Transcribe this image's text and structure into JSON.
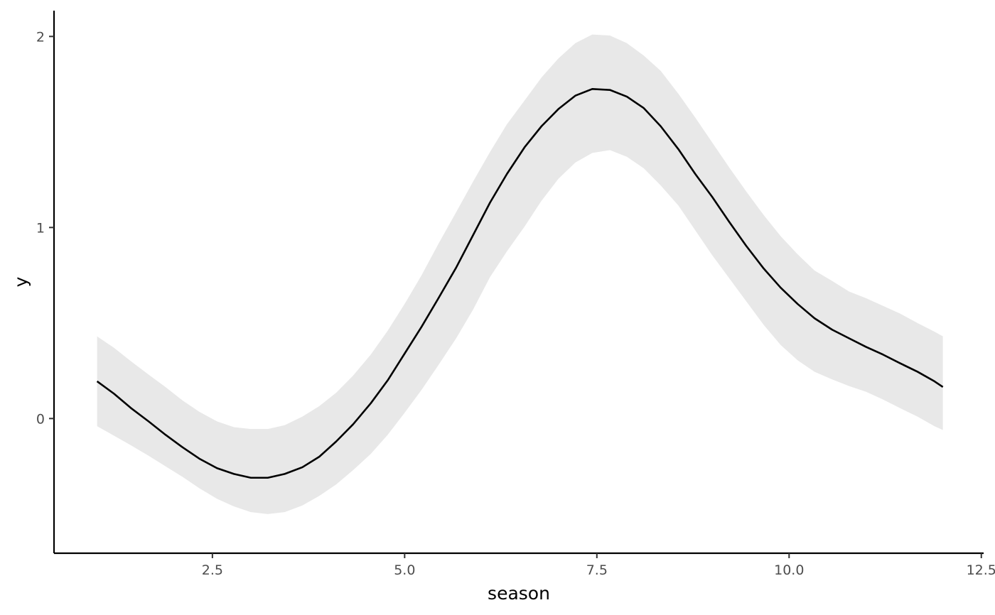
{
  "chart_data": {
    "type": "line",
    "title": "",
    "xlabel": "season",
    "ylabel": "y",
    "xlim": [
      0.44,
      12.53
    ],
    "ylim": [
      -0.705,
      2.135
    ],
    "grid": false,
    "legend": "none",
    "x_ticks": [
      {
        "value": 2.5,
        "label": "2.5"
      },
      {
        "value": 5.0,
        "label": "5.0"
      },
      {
        "value": 7.5,
        "label": "7.5"
      },
      {
        "value": 10.0,
        "label": "10.0"
      },
      {
        "value": 12.5,
        "label": "12.5"
      }
    ],
    "y_ticks": [
      {
        "value": 0,
        "label": "0"
      },
      {
        "value": 1,
        "label": "1"
      },
      {
        "value": 2,
        "label": "2"
      }
    ],
    "series": [
      {
        "x": [
          1.0,
          1.22,
          1.44,
          1.67,
          1.89,
          2.11,
          2.33,
          2.56,
          2.78,
          3.0,
          3.22,
          3.44,
          3.67,
          3.89,
          4.11,
          4.33,
          4.56,
          4.78,
          5.0,
          5.22,
          5.44,
          5.67,
          5.89,
          6.11,
          6.33,
          6.56,
          6.78,
          7.0,
          7.22,
          7.44,
          7.67,
          7.89,
          8.11,
          8.33,
          8.56,
          8.78,
          9.0,
          9.22,
          9.44,
          9.67,
          9.89,
          10.11,
          10.33,
          10.56,
          10.78,
          11.0,
          11.22,
          11.44,
          11.67,
          11.89,
          12.0
        ],
        "y": [
          0.195,
          0.13,
          0.055,
          -0.015,
          -0.085,
          -0.15,
          -0.21,
          -0.26,
          -0.29,
          -0.31,
          -0.31,
          -0.29,
          -0.255,
          -0.2,
          -0.12,
          -0.03,
          0.08,
          0.2,
          0.34,
          0.48,
          0.63,
          0.79,
          0.96,
          1.13,
          1.28,
          1.42,
          1.53,
          1.62,
          1.69,
          1.725,
          1.72,
          1.685,
          1.625,
          1.53,
          1.41,
          1.28,
          1.16,
          1.03,
          0.905,
          0.785,
          0.685,
          0.6,
          0.525,
          0.465,
          0.42,
          0.375,
          0.335,
          0.29,
          0.245,
          0.195,
          0.165
        ],
        "lower": [
          -0.04,
          -0.09,
          -0.14,
          -0.195,
          -0.25,
          -0.305,
          -0.365,
          -0.42,
          -0.46,
          -0.49,
          -0.5,
          -0.49,
          -0.455,
          -0.405,
          -0.345,
          -0.27,
          -0.185,
          -0.085,
          0.03,
          0.15,
          0.28,
          0.42,
          0.57,
          0.74,
          0.875,
          1.005,
          1.14,
          1.255,
          1.34,
          1.39,
          1.405,
          1.37,
          1.31,
          1.22,
          1.115,
          0.985,
          0.855,
          0.735,
          0.615,
          0.49,
          0.385,
          0.305,
          0.245,
          0.205,
          0.17,
          0.14,
          0.1,
          0.055,
          0.01,
          -0.04,
          -0.06
        ],
        "upper": [
          0.43,
          0.37,
          0.3,
          0.23,
          0.165,
          0.095,
          0.035,
          -0.015,
          -0.045,
          -0.055,
          -0.055,
          -0.035,
          0.01,
          0.065,
          0.135,
          0.225,
          0.335,
          0.46,
          0.6,
          0.75,
          0.915,
          1.08,
          1.24,
          1.395,
          1.54,
          1.665,
          1.785,
          1.885,
          1.965,
          2.01,
          2.005,
          1.965,
          1.9,
          1.82,
          1.7,
          1.575,
          1.445,
          1.315,
          1.19,
          1.065,
          0.955,
          0.86,
          0.775,
          0.72,
          0.665,
          0.63,
          0.59,
          0.55,
          0.5,
          0.455,
          0.43
        ]
      }
    ],
    "colors": {
      "line": "#000000",
      "ribbon": "#e8e8e8",
      "axis": "#000000",
      "tick_label": "#4d4d4d"
    }
  }
}
